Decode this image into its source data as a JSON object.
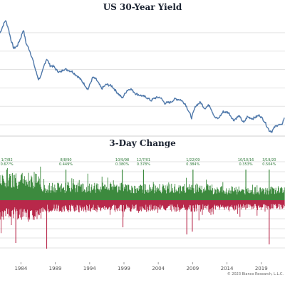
{
  "chart_data": [
    {
      "type": "line",
      "title": "US 30-Year Yield",
      "xlim": [
        1981.0,
        2022.5
      ],
      "ylim": [
        1.0,
        15.0
      ],
      "grid": true,
      "color": "#4f78aa",
      "series": [
        {
          "x": [
            1981.0,
            1981.4,
            1981.8,
            1982.2,
            1982.6,
            1983.0,
            1983.5,
            1984.0,
            1984.4,
            1984.8,
            1985.3,
            1985.8,
            1986.2,
            1986.6,
            1987.0,
            1987.5,
            1987.8,
            1988.3,
            1988.8,
            1989.3,
            1989.8,
            1990.3,
            1990.8,
            1991.5,
            1992.5,
            1993.3,
            1993.8,
            1994.5,
            1995.0,
            1995.8,
            1996.5,
            1997.3,
            1998.0,
            1998.8,
            1999.5,
            2000.0,
            2000.8,
            2001.5,
            2002.3,
            2003.0,
            2003.5,
            2004.3,
            2005.0,
            2005.8,
            2006.5,
            2007.3,
            2008.0,
            2008.9,
            2009.5,
            2010.2,
            2010.8,
            2011.5,
            2012.3,
            2012.8,
            2013.5,
            2014.3,
            2015.0,
            2015.8,
            2016.5,
            2017.0,
            2017.8,
            2018.8,
            2019.5,
            2020.2,
            2020.6,
            2021.0,
            2021.5,
            2022.0,
            2022.4
          ],
          "y": [
            12.8,
            13.6,
            14.3,
            13.4,
            12.0,
            11.0,
            11.3,
            12.2,
            13.2,
            11.6,
            10.8,
            9.6,
            8.4,
            7.4,
            7.8,
            9.2,
            9.8,
            9.0,
            8.9,
            8.4,
            8.2,
            8.6,
            8.5,
            8.3,
            7.6,
            6.8,
            6.2,
            7.6,
            7.4,
            6.3,
            6.8,
            6.6,
            5.9,
            5.2,
            6.1,
            6.3,
            5.7,
            5.5,
            5.3,
            4.9,
            5.2,
            5.3,
            4.6,
            4.7,
            5.1,
            5.0,
            4.5,
            2.9,
            4.3,
            4.7,
            4.0,
            4.4,
            2.9,
            2.8,
            3.6,
            3.5,
            2.6,
            3.1,
            2.3,
            3.0,
            2.8,
            3.2,
            2.5,
            1.4,
            1.3,
            1.8,
            2.1,
            2.0,
            2.9
          ]
        }
      ]
    },
    {
      "type": "bar",
      "title": "3-Day Change",
      "xlabel": "",
      "ylabel": "",
      "xlim": [
        1981.0,
        2022.5
      ],
      "x_ticks": [
        "1984",
        "1989",
        "1994",
        "1999",
        "2004",
        "2009",
        "2014",
        "2019"
      ],
      "positive_color": "#3c8a3e",
      "negative_color": "#b8284a",
      "annotations": [
        {
          "date": "1/7/82",
          "value": "0.6??%",
          "x": 1982.0
        },
        {
          "date": "8/8/90",
          "value": "0.449%",
          "x": 1990.6
        },
        {
          "date": "10/9/98",
          "value": "0.380%",
          "x": 1998.8
        },
        {
          "date": "12/7/01",
          "value": "0.378%",
          "x": 2001.9
        },
        {
          "date": "1/22/09",
          "value": "0.384%",
          "x": 2009.1
        },
        {
          "date": "10/10/16",
          "value": "0.353%",
          "x": 2016.8
        },
        {
          "date": "3/19/20",
          "value": "0.504%",
          "x": 2020.2
        }
      ]
    }
  ],
  "copyright": "© 2023 Bianco Research, L.L.C."
}
